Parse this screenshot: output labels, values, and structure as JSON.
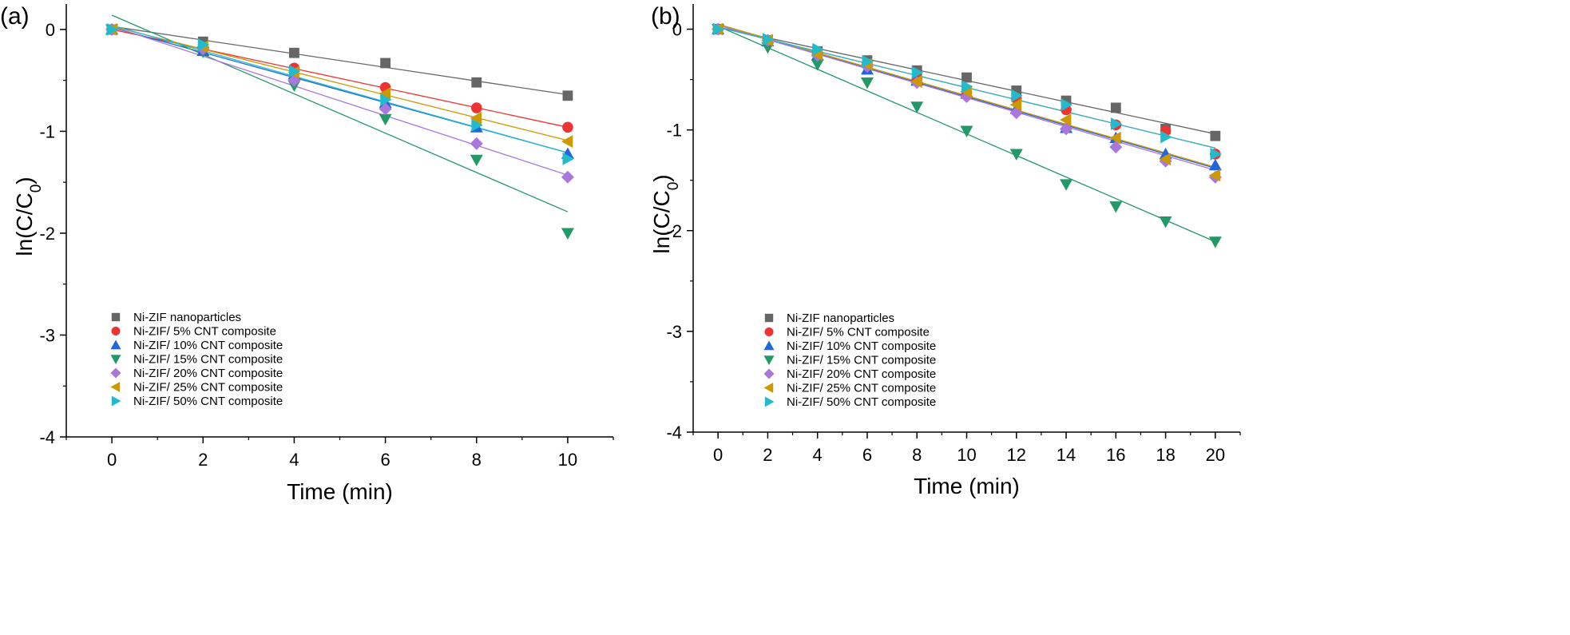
{
  "chart_data": [
    {
      "type": "scatter",
      "panel_label": "(a)",
      "xlabel": "Time (min)",
      "ylabel_main": "ln(C/C",
      "ylabel_sub": "0",
      "ylabel_close": ")",
      "xlim": [
        -1,
        11
      ],
      "ylim": [
        -4,
        0.25
      ],
      "xticks": [
        0,
        2,
        4,
        6,
        8,
        10
      ],
      "yticks": [
        0,
        -1,
        -2,
        -3,
        -4
      ],
      "legend_position": "lower-left",
      "x": [
        0,
        2,
        4,
        6,
        8,
        10
      ],
      "series": [
        {
          "name": "Ni-ZIF nanoparticles",
          "color": "#666666",
          "marker": "square",
          "values": [
            0,
            -0.12,
            -0.23,
            -0.33,
            -0.52,
            -0.65
          ],
          "fit": [
            0.03,
            -0.067
          ]
        },
        {
          "name": "Ni-ZIF/ 5% CNT composite",
          "color": "#ee3333",
          "marker": "circle",
          "values": [
            0,
            -0.18,
            -0.38,
            -0.57,
            -0.77,
            -0.96
          ],
          "fit": [
            0.0,
            -0.096
          ]
        },
        {
          "name": "Ni-ZIF/ 10% CNT composite",
          "color": "#2266dd",
          "marker": "triangle-up",
          "values": [
            0,
            -0.21,
            -0.44,
            -0.72,
            -0.96,
            -1.22
          ],
          "fit": [
            0.02,
            -0.123
          ]
        },
        {
          "name": "Ni-ZIF/ 15% CNT composite",
          "color": "#229966",
          "marker": "triangle-down",
          "values": [
            0,
            -0.22,
            -0.55,
            -0.88,
            -1.28,
            -2.0
          ],
          "fit": [
            0.14,
            -0.193
          ]
        },
        {
          "name": "Ni-ZIF/ 20% CNT composite",
          "color": "#aa77dd",
          "marker": "diamond",
          "values": [
            0,
            -0.19,
            -0.5,
            -0.78,
            -1.12,
            -1.45
          ],
          "fit": [
            0.03,
            -0.146
          ]
        },
        {
          "name": "Ni-ZIF/ 25% CNT composite",
          "color": "#cc9900",
          "marker": "triangle-left",
          "values": [
            0,
            -0.17,
            -0.42,
            -0.63,
            -0.87,
            -1.1
          ],
          "fit": [
            0.03,
            -0.112
          ]
        },
        {
          "name": "Ni-ZIF/ 50% CNT composite",
          "color": "#22bbcc",
          "marker": "triangle-right",
          "values": [
            0,
            -0.15,
            -0.41,
            -0.69,
            -0.94,
            -1.27
          ],
          "fit": [
            0.04,
            -0.125
          ]
        }
      ]
    },
    {
      "type": "scatter",
      "panel_label": "(b)",
      "xlabel": "Time (min)",
      "ylabel_main": "ln(C/C",
      "ylabel_sub": "0",
      "ylabel_close": ")",
      "xlim": [
        -1,
        21
      ],
      "ylim": [
        -4,
        0.25
      ],
      "xticks": [
        0,
        2,
        4,
        6,
        8,
        10,
        12,
        14,
        16,
        18,
        20
      ],
      "yticks": [
        0,
        -1,
        -2,
        -3,
        -4
      ],
      "legend_position": "lower-left",
      "x": [
        0,
        2,
        4,
        6,
        8,
        10,
        12,
        14,
        16,
        18,
        20
      ],
      "series": [
        {
          "name": "Ni-ZIF nanoparticles",
          "color": "#666666",
          "marker": "square",
          "values": [
            0,
            -0.11,
            -0.22,
            -0.31,
            -0.41,
            -0.48,
            -0.61,
            -0.71,
            -0.78,
            -0.99,
            -1.06
          ],
          "fit": [
            0.02,
            -0.053
          ]
        },
        {
          "name": "Ni-ZIF/ 5% CNT composite",
          "color": "#ee3333",
          "marker": "circle",
          "values": [
            0,
            -0.11,
            -0.24,
            -0.34,
            -0.49,
            -0.63,
            -0.69,
            -0.8,
            -0.95,
            -1.01,
            -1.24
          ],
          "fit": [
            0.02,
            -0.06
          ]
        },
        {
          "name": "Ni-ZIF/ 10% CNT composite",
          "color": "#2266dd",
          "marker": "triangle-up",
          "values": [
            0,
            -0.12,
            -0.26,
            -0.4,
            -0.51,
            -0.64,
            -0.79,
            -0.98,
            -1.08,
            -1.24,
            -1.35
          ],
          "fit": [
            0.04,
            -0.071
          ]
        },
        {
          "name": "Ni-ZIF/ 15% CNT composite",
          "color": "#229966",
          "marker": "triangle-down",
          "values": [
            0,
            -0.18,
            -0.35,
            -0.53,
            -0.77,
            -1.01,
            -1.24,
            -1.54,
            -1.76,
            -1.91,
            -2.11
          ],
          "fit": [
            0.03,
            -0.107
          ]
        },
        {
          "name": "Ni-ZIF/ 20% CNT composite",
          "color": "#aa77dd",
          "marker": "diamond",
          "values": [
            0,
            -0.11,
            -0.26,
            -0.37,
            -0.53,
            -0.67,
            -0.83,
            -0.99,
            -1.17,
            -1.31,
            -1.47
          ],
          "fit": [
            0.04,
            -0.072
          ]
        },
        {
          "name": "Ni-ZIF/ 25% CNT composite",
          "color": "#cc9900",
          "marker": "triangle-left",
          "values": [
            0,
            -0.11,
            -0.25,
            -0.35,
            -0.52,
            -0.62,
            -0.75,
            -0.9,
            -1.08,
            -1.29,
            -1.45
          ],
          "fit": [
            0.05,
            -0.071
          ]
        },
        {
          "name": "Ni-ZIF/ 50% CNT composite",
          "color": "#22bbcc",
          "marker": "triangle-right",
          "values": [
            0,
            -0.1,
            -0.2,
            -0.32,
            -0.43,
            -0.57,
            -0.66,
            -0.75,
            -0.94,
            -1.07,
            -1.24
          ],
          "fit": [
            0.02,
            -0.06
          ]
        }
      ]
    }
  ]
}
